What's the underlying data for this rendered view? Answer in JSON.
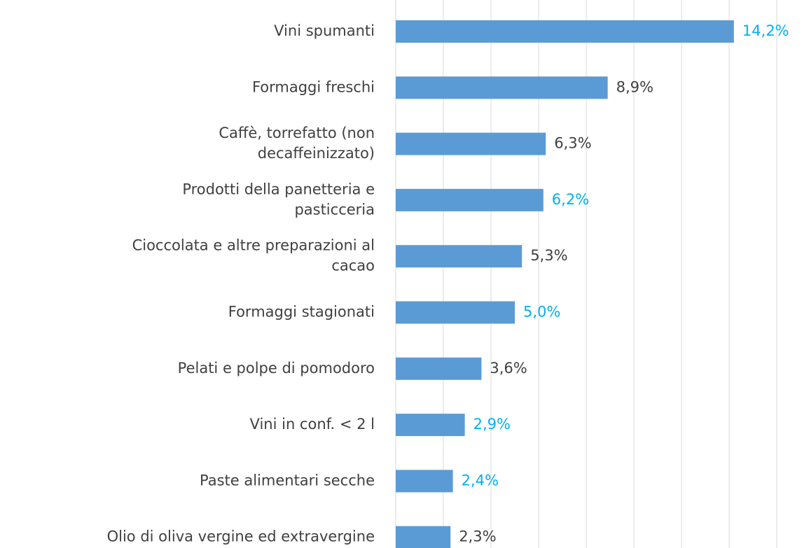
{
  "chart_data": {
    "type": "bar",
    "orientation": "horizontal",
    "categories": [
      "Vini spumanti",
      "Formaggi freschi",
      "Caffè, torrefatto (non\ndecaffeinizzato)",
      "Prodotti della panetteria e\npasticceria",
      "Cioccolata e altre preparazioni al\ncacao",
      "Formaggi stagionati",
      "Pelati e polpe di pomodoro",
      "Vini in conf. < 2 l",
      "Paste alimentari secche",
      "Olio di oliva vergine ed extravergine"
    ],
    "values": [
      14.2,
      8.9,
      6.3,
      6.2,
      5.3,
      5.0,
      3.6,
      2.9,
      2.4,
      2.3
    ],
    "value_labels": [
      "14,2%",
      "8,9%",
      "6,3%",
      "6,2%",
      "5,3%",
      "5,0%",
      "3,6%",
      "2,9%",
      "2,4%",
      "2,3%"
    ],
    "value_label_colors": [
      "#00b0f0",
      "#404040",
      "#404040",
      "#00b0f0",
      "#404040",
      "#00b0f0",
      "#404040",
      "#00b0f0",
      "#00b0f0",
      "#404040"
    ],
    "color": "#5b9bd5",
    "xlim": [
      0,
      16
    ],
    "xticks": [
      0,
      2,
      4,
      6,
      8,
      10,
      12,
      14,
      16
    ],
    "grid": true
  }
}
